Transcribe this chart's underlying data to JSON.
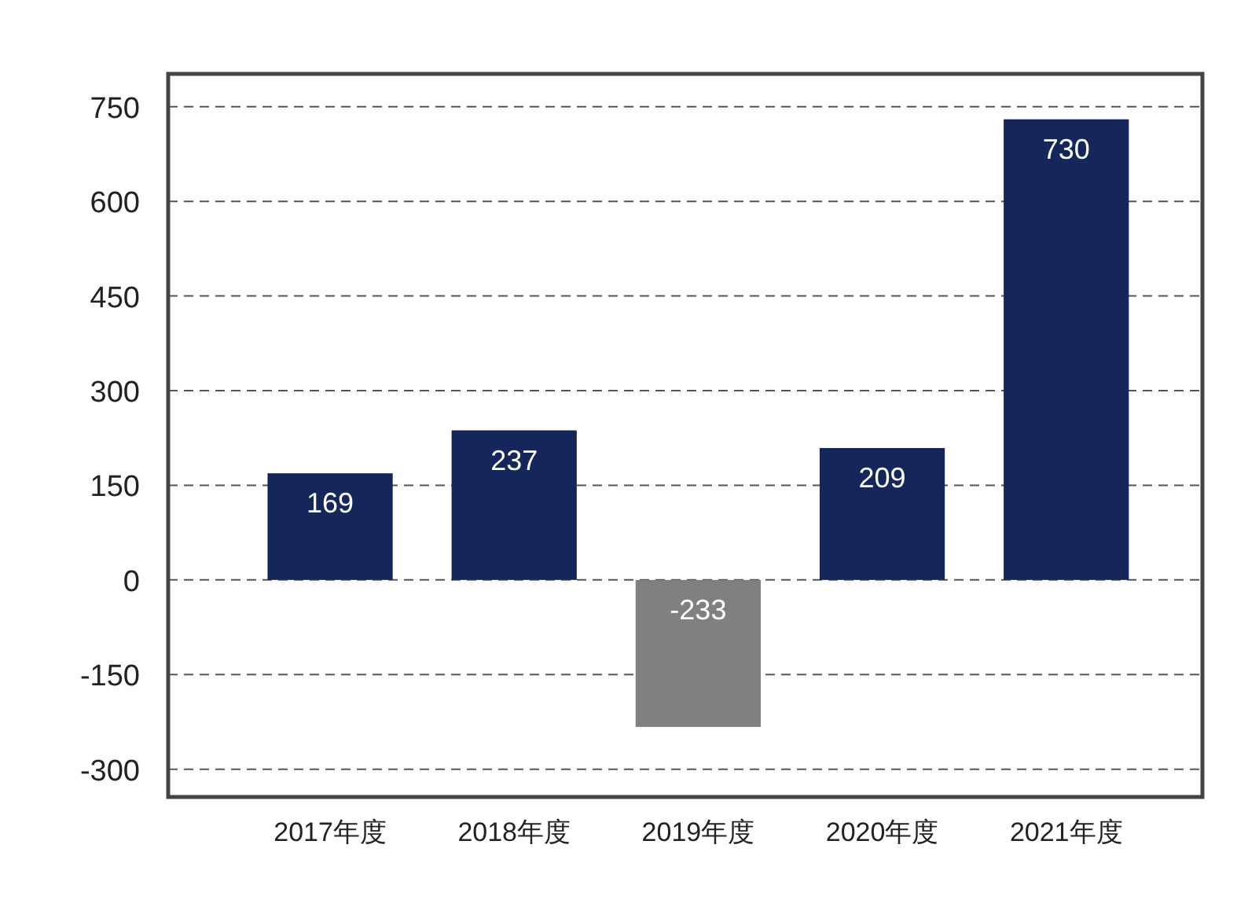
{
  "chart_data": {
    "type": "bar",
    "categories": [
      "2017年度",
      "2018年度",
      "2019年度",
      "2020年度",
      "2021年度"
    ],
    "values": [
      169,
      237,
      -233,
      209,
      730
    ],
    "colors": [
      "#14265a",
      "#14265a",
      "#808080",
      "#14265a",
      "#14265a"
    ],
    "ylim": [
      -344,
      802
    ],
    "yticks": [
      -300,
      -150,
      0,
      150,
      300,
      450,
      600,
      750
    ],
    "grid": "y",
    "data_labels": true
  }
}
